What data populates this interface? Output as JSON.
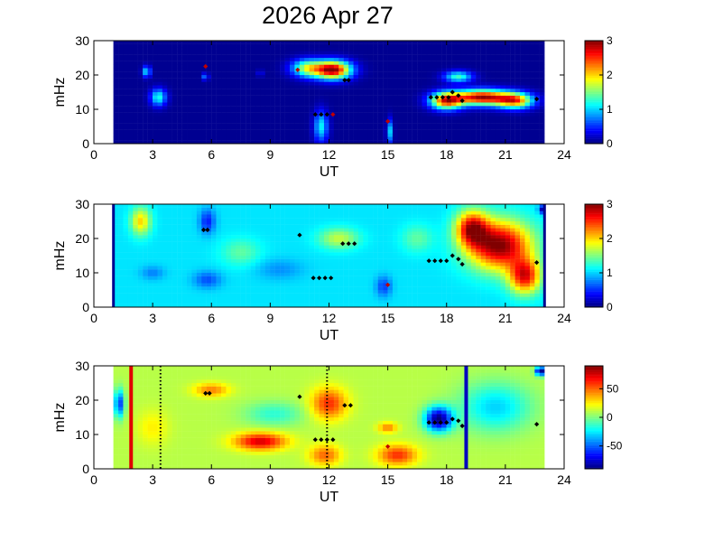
{
  "title": "2026 Apr 27",
  "chart_data": [
    {
      "type": "heatmap",
      "panel": "top",
      "xlabel": "UT",
      "ylabel": "mHz",
      "xlim": [
        0,
        24
      ],
      "ylim": [
        0,
        30
      ],
      "xticks": [
        "0",
        "3",
        "6",
        "9",
        "12",
        "15",
        "18",
        "21",
        "24"
      ],
      "yticks": [
        "0",
        "10",
        "20",
        "30"
      ],
      "data_extent_ut": [
        1,
        23
      ],
      "colorbar": {
        "range": [
          0,
          3
        ],
        "ticks": [
          "0",
          "1",
          "2",
          "3"
        ]
      },
      "background_value": 0.05,
      "blobs": [
        {
          "ut": 12.2,
          "mhz": 21.5,
          "value": 3.0,
          "sut": 0.9,
          "smhz": 2.6
        },
        {
          "ut": 10.9,
          "mhz": 22.0,
          "value": 1.6,
          "sut": 0.8,
          "smhz": 2.5
        },
        {
          "ut": 19.8,
          "mhz": 13.5,
          "value": 2.9,
          "sut": 1.4,
          "smhz": 2.2
        },
        {
          "ut": 18.0,
          "mhz": 12.5,
          "value": 2.5,
          "sut": 0.8,
          "smhz": 2.4
        },
        {
          "ut": 21.5,
          "mhz": 12.5,
          "value": 2.2,
          "sut": 0.9,
          "smhz": 2.2
        },
        {
          "ut": 18.6,
          "mhz": 19.5,
          "value": 1.3,
          "sut": 0.7,
          "smhz": 1.6
        },
        {
          "ut": 3.3,
          "mhz": 13.5,
          "value": 1.2,
          "sut": 0.4,
          "smhz": 2.5
        },
        {
          "ut": 2.7,
          "mhz": 21.0,
          "value": 1.1,
          "sut": 0.2,
          "smhz": 1.6
        },
        {
          "ut": 11.6,
          "mhz": 5.0,
          "value": 1.1,
          "sut": 0.35,
          "smhz": 4.5
        },
        {
          "ut": 15.1,
          "mhz": 3.5,
          "value": 1.0,
          "sut": 0.15,
          "smhz": 3.5
        },
        {
          "ut": 8.5,
          "mhz": 20.5,
          "value": 0.9,
          "sut": 0.1,
          "smhz": 1.0
        },
        {
          "ut": 5.7,
          "mhz": 19.5,
          "value": 0.8,
          "sut": 0.15,
          "smhz": 1.0
        }
      ],
      "lines": [],
      "markers": [
        {
          "ut": 5.7,
          "mhz": 22.5,
          "color": "#c00000"
        },
        {
          "ut": 10.4,
          "mhz": 21.5,
          "color": "#c00000"
        },
        {
          "ut": 11.3,
          "mhz": 8.5,
          "color": "#000000"
        },
        {
          "ut": 11.6,
          "mhz": 8.5,
          "color": "#000000"
        },
        {
          "ut": 11.9,
          "mhz": 8.5,
          "color": "#000000"
        },
        {
          "ut": 12.2,
          "mhz": 8.5,
          "color": "#c00000"
        },
        {
          "ut": 12.8,
          "mhz": 18.5,
          "color": "#000000"
        },
        {
          "ut": 13.0,
          "mhz": 18.5,
          "color": "#000000"
        },
        {
          "ut": 15.0,
          "mhz": 6.5,
          "color": "#c00000"
        },
        {
          "ut": 17.2,
          "mhz": 13.5,
          "color": "#000000"
        },
        {
          "ut": 17.5,
          "mhz": 13.5,
          "color": "#000000"
        },
        {
          "ut": 17.8,
          "mhz": 13.5,
          "color": "#000000"
        },
        {
          "ut": 18.1,
          "mhz": 13.5,
          "color": "#000000"
        },
        {
          "ut": 18.3,
          "mhz": 15.0,
          "color": "#000000"
        },
        {
          "ut": 18.6,
          "mhz": 14.0,
          "color": "#000000"
        },
        {
          "ut": 18.8,
          "mhz": 12.5,
          "color": "#000000"
        },
        {
          "ut": 22.6,
          "mhz": 13.0,
          "color": "#000000"
        }
      ]
    },
    {
      "type": "heatmap",
      "panel": "middle",
      "xlabel": "UT",
      "ylabel": "mHz",
      "xlim": [
        0,
        24
      ],
      "ylim": [
        0,
        30
      ],
      "xticks": [
        "0",
        "3",
        "6",
        "9",
        "12",
        "15",
        "18",
        "21",
        "24"
      ],
      "yticks": [
        "0",
        "10",
        "20",
        "30"
      ],
      "data_extent_ut": [
        1,
        23
      ],
      "colorbar": {
        "range": [
          0,
          3
        ],
        "ticks": [
          "0",
          "1",
          "2",
          "3"
        ]
      },
      "background_value": 1.05,
      "blobs": [
        {
          "ut": 20.7,
          "mhz": 18.0,
          "value": 3.0,
          "sut": 1.6,
          "smhz": 7.0
        },
        {
          "ut": 19.3,
          "mhz": 23.0,
          "value": 2.6,
          "sut": 0.8,
          "smhz": 5.0
        },
        {
          "ut": 22.0,
          "mhz": 9.0,
          "value": 2.6,
          "sut": 0.8,
          "smhz": 5.0
        },
        {
          "ut": 2.4,
          "mhz": 25.0,
          "value": 2.0,
          "sut": 0.5,
          "smhz": 4.0
        },
        {
          "ut": 12.5,
          "mhz": 20.0,
          "value": 1.7,
          "sut": 1.0,
          "smhz": 3.0
        },
        {
          "ut": 5.8,
          "mhz": 25.0,
          "value": 0.45,
          "sut": 0.4,
          "smhz": 3.5
        },
        {
          "ut": 14.8,
          "mhz": 6.0,
          "value": 0.55,
          "sut": 0.4,
          "smhz": 3.0
        },
        {
          "ut": 5.8,
          "mhz": 8.0,
          "value": 0.6,
          "sut": 0.7,
          "smhz": 2.5
        },
        {
          "ut": 3.0,
          "mhz": 10.0,
          "value": 0.75,
          "sut": 0.6,
          "smhz": 2.0
        },
        {
          "ut": 9.5,
          "mhz": 11.0,
          "value": 0.8,
          "sut": 1.2,
          "smhz": 3.0
        },
        {
          "ut": 7.5,
          "mhz": 16.0,
          "value": 1.4,
          "sut": 1.0,
          "smhz": 4.0
        },
        {
          "ut": 16.5,
          "mhz": 20.0,
          "value": 1.4,
          "sut": 0.8,
          "smhz": 4.0
        },
        {
          "ut": 22.9,
          "mhz": 28.5,
          "value": 0.1,
          "sut": 0.2,
          "smhz": 1.2
        }
      ],
      "lines": [
        {
          "ut": 1.0,
          "color": "#00008f",
          "width": 3,
          "style": "solid"
        },
        {
          "ut": 23.0,
          "color": "#00008f",
          "width": 3,
          "style": "solid"
        }
      ],
      "markers": [
        {
          "ut": 5.6,
          "mhz": 22.5,
          "color": "#000000"
        },
        {
          "ut": 5.8,
          "mhz": 22.5,
          "color": "#000000"
        },
        {
          "ut": 10.5,
          "mhz": 21.0,
          "color": "#000000"
        },
        {
          "ut": 11.2,
          "mhz": 8.5,
          "color": "#000000"
        },
        {
          "ut": 11.5,
          "mhz": 8.5,
          "color": "#000000"
        },
        {
          "ut": 11.8,
          "mhz": 8.5,
          "color": "#000000"
        },
        {
          "ut": 12.1,
          "mhz": 8.5,
          "color": "#000000"
        },
        {
          "ut": 12.7,
          "mhz": 18.5,
          "color": "#000000"
        },
        {
          "ut": 13.0,
          "mhz": 18.5,
          "color": "#000000"
        },
        {
          "ut": 13.3,
          "mhz": 18.5,
          "color": "#000000"
        },
        {
          "ut": 15.0,
          "mhz": 6.5,
          "color": "#c00000"
        },
        {
          "ut": 17.1,
          "mhz": 13.5,
          "color": "#000000"
        },
        {
          "ut": 17.4,
          "mhz": 13.5,
          "color": "#000000"
        },
        {
          "ut": 17.7,
          "mhz": 13.5,
          "color": "#000000"
        },
        {
          "ut": 18.0,
          "mhz": 13.5,
          "color": "#000000"
        },
        {
          "ut": 18.3,
          "mhz": 15.0,
          "color": "#000000"
        },
        {
          "ut": 18.6,
          "mhz": 14.0,
          "color": "#000000"
        },
        {
          "ut": 18.8,
          "mhz": 12.5,
          "color": "#000000"
        },
        {
          "ut": 22.6,
          "mhz": 13.0,
          "color": "#000000"
        }
      ]
    },
    {
      "type": "heatmap",
      "panel": "bottom",
      "xlabel": "UT",
      "ylabel": "mHz",
      "xlim": [
        0,
        24
      ],
      "ylim": [
        0,
        30
      ],
      "xticks": [
        "0",
        "3",
        "6",
        "9",
        "12",
        "15",
        "18",
        "21",
        "24"
      ],
      "yticks": [
        "0",
        "10",
        "20",
        "30"
      ],
      "data_extent_ut": [
        1,
        23
      ],
      "colorbar": {
        "range": [
          -90,
          90
        ],
        "ticks": [
          "50",
          "0",
          "-50"
        ],
        "tick_values": [
          50,
          0,
          -50
        ]
      },
      "background_value": 10,
      "blobs": [
        {
          "ut": 8.5,
          "mhz": 8.0,
          "value": 75,
          "sut": 1.3,
          "smhz": 2.5
        },
        {
          "ut": 12.0,
          "mhz": 19.0,
          "value": 60,
          "sut": 0.9,
          "smhz": 4.5
        },
        {
          "ut": 15.5,
          "mhz": 4.0,
          "value": 60,
          "sut": 1.0,
          "smhz": 3.0
        },
        {
          "ut": 11.8,
          "mhz": 4.0,
          "value": 50,
          "sut": 0.8,
          "smhz": 3.0
        },
        {
          "ut": 15.0,
          "mhz": 12.0,
          "value": 45,
          "sut": 0.5,
          "smhz": 1.5
        },
        {
          "ut": 6.0,
          "mhz": 23.0,
          "value": 45,
          "sut": 0.9,
          "smhz": 2.0
        },
        {
          "ut": 17.6,
          "mhz": 14.5,
          "value": -90,
          "sut": 0.7,
          "smhz": 3.5
        },
        {
          "ut": 20.5,
          "mhz": 18.0,
          "value": -30,
          "sut": 1.8,
          "smhz": 7.0
        },
        {
          "ut": 9.2,
          "mhz": 16.0,
          "value": -15,
          "sut": 1.5,
          "smhz": 3.5
        },
        {
          "ut": 1.3,
          "mhz": 19.0,
          "value": -60,
          "sut": 0.25,
          "smhz": 4.0
        },
        {
          "ut": 22.8,
          "mhz": 28.5,
          "value": -95,
          "sut": 0.25,
          "smhz": 1.3
        },
        {
          "ut": 3.0,
          "mhz": 12.0,
          "value": 25,
          "sut": 0.8,
          "smhz": 5.0
        }
      ],
      "lines": [
        {
          "ut": 1.9,
          "color": "#e00000",
          "width": 4,
          "style": "solid"
        },
        {
          "ut": 3.4,
          "color": "#000000",
          "width": 2,
          "style": "dotted"
        },
        {
          "ut": 11.9,
          "color": "#000000",
          "width": 2,
          "style": "dotted"
        },
        {
          "ut": 19.0,
          "color": "#0000c0",
          "width": 4,
          "style": "solid"
        }
      ],
      "markers": [
        {
          "ut": 5.7,
          "mhz": 22.0,
          "color": "#000000"
        },
        {
          "ut": 5.9,
          "mhz": 22.0,
          "color": "#000000"
        },
        {
          "ut": 10.5,
          "mhz": 21.0,
          "color": "#000000"
        },
        {
          "ut": 11.3,
          "mhz": 8.5,
          "color": "#000000"
        },
        {
          "ut": 11.6,
          "mhz": 8.5,
          "color": "#000000"
        },
        {
          "ut": 11.9,
          "mhz": 8.5,
          "color": "#000000"
        },
        {
          "ut": 12.2,
          "mhz": 8.5,
          "color": "#000000"
        },
        {
          "ut": 12.8,
          "mhz": 18.5,
          "color": "#000000"
        },
        {
          "ut": 13.1,
          "mhz": 18.5,
          "color": "#000000"
        },
        {
          "ut": 15.0,
          "mhz": 6.5,
          "color": "#c00000"
        },
        {
          "ut": 17.1,
          "mhz": 13.5,
          "color": "#000000"
        },
        {
          "ut": 17.4,
          "mhz": 13.5,
          "color": "#000000"
        },
        {
          "ut": 17.7,
          "mhz": 13.5,
          "color": "#000000"
        },
        {
          "ut": 18.0,
          "mhz": 13.5,
          "color": "#000000"
        },
        {
          "ut": 18.3,
          "mhz": 14.5,
          "color": "#000000"
        },
        {
          "ut": 18.6,
          "mhz": 14.0,
          "color": "#000000"
        },
        {
          "ut": 18.8,
          "mhz": 12.5,
          "color": "#000000"
        },
        {
          "ut": 22.6,
          "mhz": 13.0,
          "color": "#000000"
        }
      ]
    }
  ]
}
